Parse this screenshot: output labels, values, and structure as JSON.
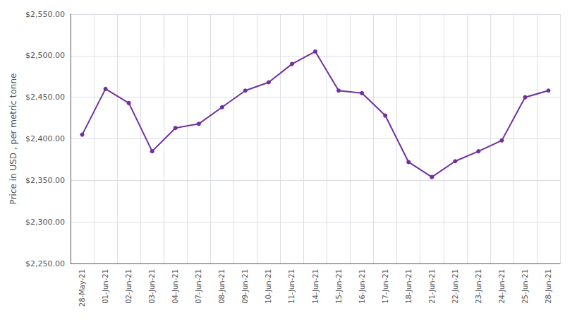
{
  "chart_data": {
    "type": "line",
    "y_label": "Price in USD , per metric tonne",
    "categories": [
      "28-May-21",
      "01-Jun-21",
      "02-Jun-21",
      "03-Jun-21",
      "04-Jun-21",
      "07-Jun-21",
      "08-Jun-21",
      "09-Jun-21",
      "10-Jun-21",
      "11-Jun-21",
      "14-Jun-21",
      "15-Jun-21",
      "16-Jun-21",
      "17-Jun-21",
      "18-Jun-21",
      "21-Jun-21",
      "22-Jun-21",
      "23-Jun-21",
      "24-Jun-21",
      "25-Jun-21",
      "28-Jun-21"
    ],
    "values": [
      2405,
      2460,
      2443,
      2385,
      2413,
      2418,
      2438,
      2458,
      2468,
      2490,
      2505,
      2458,
      2455,
      2428,
      2372,
      2354,
      2373,
      2385,
      2398,
      2450,
      2458
    ],
    "color": "#7030A0",
    "marker": "circle",
    "ylim": [
      2250,
      2550
    ],
    "yticks": [
      {
        "value": 2250,
        "label": "$2,250.00"
      },
      {
        "value": 2300,
        "label": "$2,300.00"
      },
      {
        "value": 2350,
        "label": "$2,350.00"
      },
      {
        "value": 2400,
        "label": "$2,400.00"
      },
      {
        "value": 2450,
        "label": "$2,450.00"
      },
      {
        "value": 2500,
        "label": "$2,500.00"
      },
      {
        "value": 2550,
        "label": "$2,550.00"
      }
    ],
    "grid": true
  }
}
